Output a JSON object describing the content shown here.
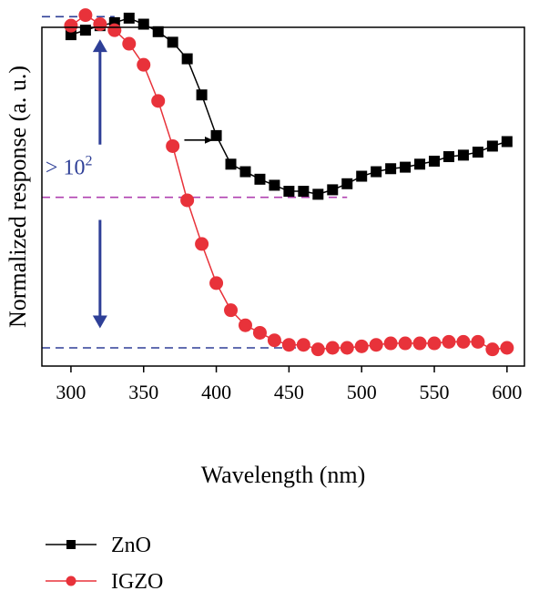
{
  "chart_data": {
    "type": "line",
    "xlabel": "Wavelength (nm)",
    "ylabel": "Normalized response (a. u.)",
    "xlim": [
      280,
      612
    ],
    "x_ticks": [
      300,
      350,
      400,
      450,
      500,
      550,
      600
    ],
    "x_tick_labels": [
      "300",
      "350",
      "400",
      "450",
      "500",
      "550",
      "600"
    ],
    "y_ticks_labeled": false,
    "log_y": true,
    "ylim_log10": [
      -2.2,
      0.05
    ],
    "grid": false,
    "legend_position": "bottom-left, below plot",
    "series": [
      {
        "name": "ZnO",
        "color": "#000000",
        "marker": "square",
        "x": [
          300,
          310,
          320,
          330,
          340,
          350,
          360,
          370,
          380,
          390,
          400,
          410,
          420,
          430,
          440,
          450,
          460,
          470,
          480,
          490,
          500,
          510,
          520,
          530,
          540,
          550,
          560,
          570,
          580,
          590,
          600
        ],
        "y_log10": [
          -0.12,
          -0.09,
          -0.06,
          -0.04,
          -0.01,
          -0.05,
          -0.1,
          -0.17,
          -0.28,
          -0.52,
          -0.79,
          -0.98,
          -1.03,
          -1.08,
          -1.12,
          -1.16,
          -1.16,
          -1.18,
          -1.15,
          -1.11,
          -1.06,
          -1.03,
          -1.01,
          -1.0,
          -0.98,
          -0.96,
          -0.93,
          -0.92,
          -0.9,
          -0.86,
          -0.83
        ]
      },
      {
        "name": "IGZO",
        "color": "#e8323a",
        "marker": "circle",
        "x": [
          300,
          310,
          320,
          330,
          340,
          350,
          360,
          370,
          380,
          390,
          400,
          410,
          420,
          430,
          440,
          450,
          460,
          470,
          480,
          490,
          500,
          510,
          520,
          530,
          540,
          550,
          560,
          570,
          580,
          590,
          600
        ],
        "y_log10": [
          -0.06,
          0.01,
          -0.05,
          -0.09,
          -0.18,
          -0.32,
          -0.56,
          -0.86,
          -1.22,
          -1.51,
          -1.77,
          -1.95,
          -2.05,
          -2.1,
          -2.15,
          -2.18,
          -2.18,
          -2.21,
          -2.2,
          -2.2,
          -2.19,
          -2.18,
          -2.17,
          -2.17,
          -2.17,
          -2.17,
          -2.16,
          -2.16,
          -2.16,
          -2.21,
          -2.2
        ]
      }
    ],
    "reference_lines": [
      {
        "y_log10": 0.0,
        "x_range": [
          280,
          330
        ],
        "color": "#2e3f97",
        "style": "dashed"
      },
      {
        "y_log10": -1.2,
        "x_range": [
          280,
          490
        ],
        "color": "#b040b0",
        "style": "dashed"
      },
      {
        "y_log10": -2.2,
        "x_range": [
          280,
          505
        ],
        "color": "#2e3f97",
        "style": "dashed"
      }
    ],
    "annotations": [
      {
        "text": "> 10",
        "superscript": "2",
        "color": "#2e3f97",
        "x": 300,
        "y_log10": -1.0
      },
      {
        "type": "double-arrow",
        "color": "#2e3f97",
        "x": 320,
        "from_y_log10": -0.15,
        "to_y_log10": -2.07
      },
      {
        "type": "arrow",
        "color": "#000000",
        "from": [
          378,
          -0.82
        ],
        "to": [
          397,
          -0.82
        ]
      }
    ]
  }
}
